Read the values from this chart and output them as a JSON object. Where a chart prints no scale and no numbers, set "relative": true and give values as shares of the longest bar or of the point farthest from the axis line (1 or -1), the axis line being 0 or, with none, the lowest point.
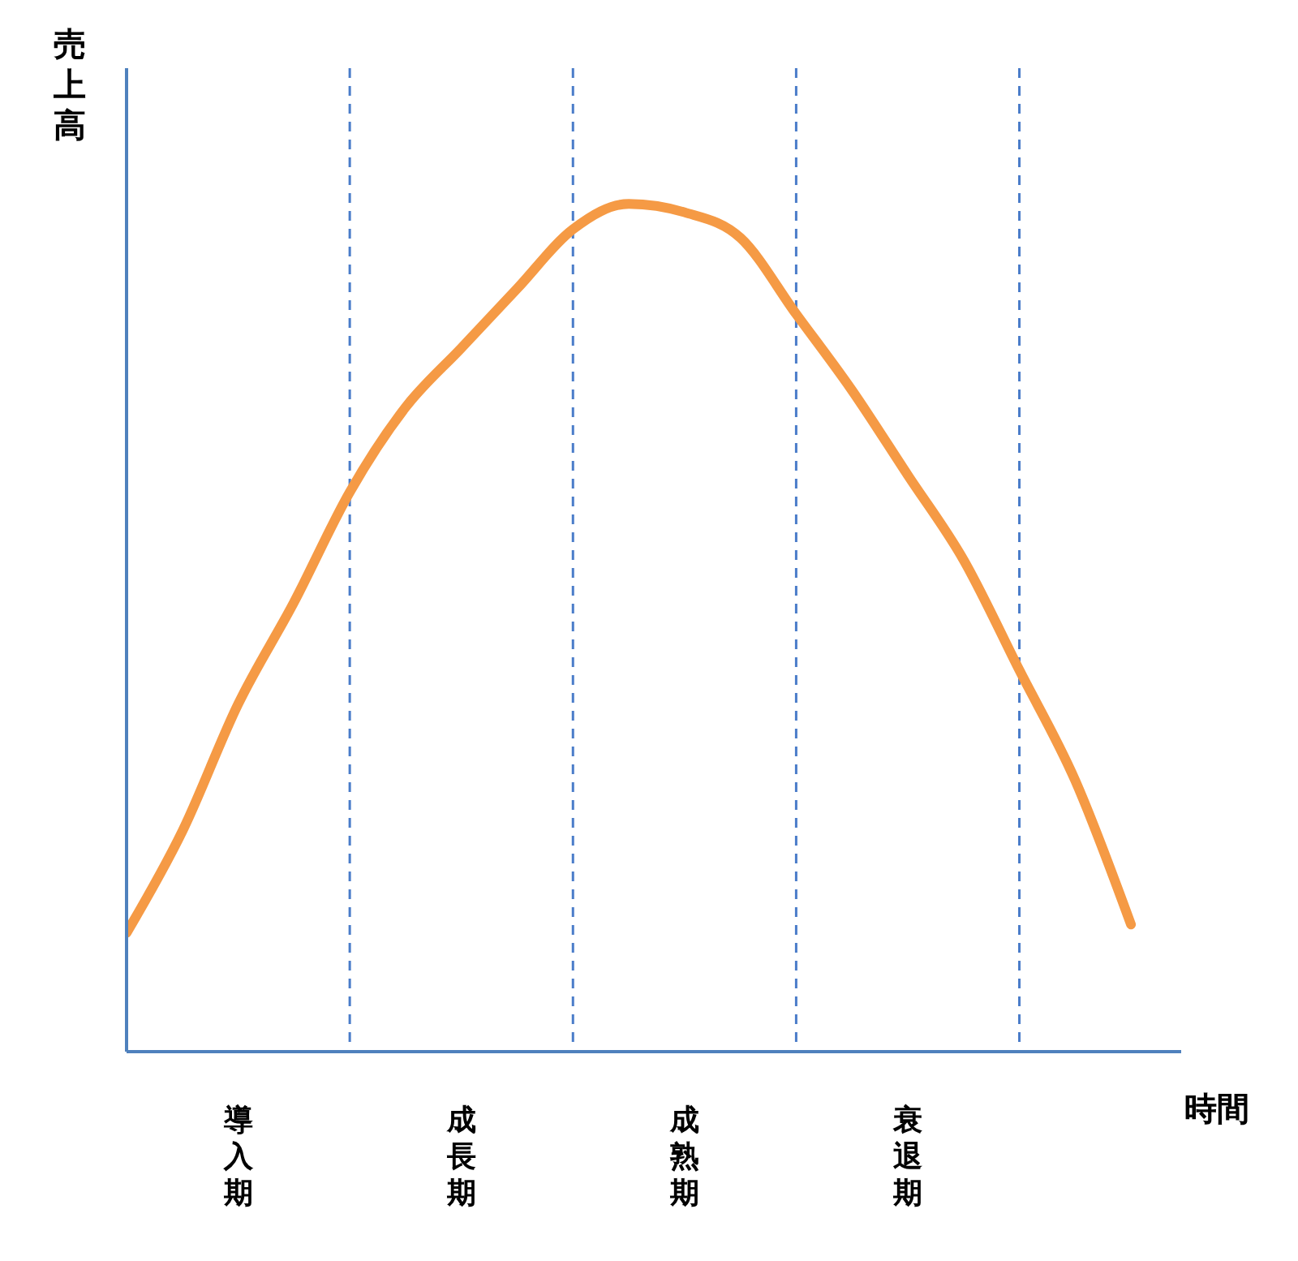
{
  "chart_data": {
    "type": "line",
    "relative": true,
    "ylabel": "売上高",
    "xlabel": "時間",
    "categories": [
      null,
      null,
      "導入期",
      null,
      null,
      null,
      "成長期",
      null,
      null,
      null,
      "成熟期",
      null,
      null,
      null,
      "衰退期",
      null,
      null,
      null,
      null
    ],
    "series": [
      {
        "color": "#f59a45",
        "values": [
          0.14,
          0.26,
          0.41,
          0.53,
          0.66,
          0.76,
          0.83,
          0.9,
          0.97,
          1.0,
          0.99,
          0.96,
          0.87,
          0.78,
          0.68,
          0.58,
          0.45,
          0.32,
          0.15
        ]
      }
    ],
    "grid": "x",
    "legend": false,
    "marker": "none",
    "line_style": "solid"
  }
}
